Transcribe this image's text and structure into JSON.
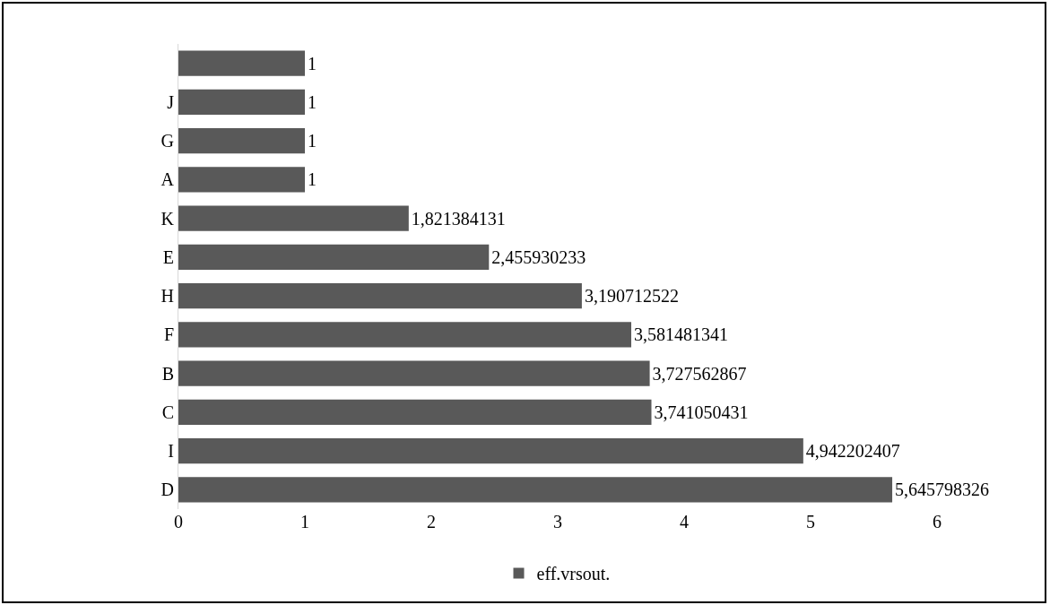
{
  "chart_data": {
    "type": "bar",
    "orientation": "horizontal",
    "categories": [
      null,
      "J",
      "G",
      "A",
      "K",
      "E",
      "H",
      "F",
      "B",
      "C",
      "I",
      "D"
    ],
    "series": [
      {
        "name": "eff.vrsout.",
        "color": "#595959",
        "values": [
          1,
          1,
          1,
          1,
          1.821384131,
          2.455930233,
          3.190712522,
          3.581481341,
          3.727562867,
          3.741050431,
          4.942202407,
          5.645798326
        ],
        "value_labels": [
          "1",
          "1",
          "1",
          "1",
          "1,821384131",
          "2,455930233",
          "3,190712522",
          "3,581481341",
          "3,727562867",
          "3,741050431",
          "4,942202407",
          "5,645798326"
        ]
      }
    ],
    "xlim": [
      0,
      6
    ],
    "xticks": [
      0,
      1,
      2,
      3,
      4,
      5,
      6
    ],
    "grid": false,
    "legend": "bottom"
  }
}
